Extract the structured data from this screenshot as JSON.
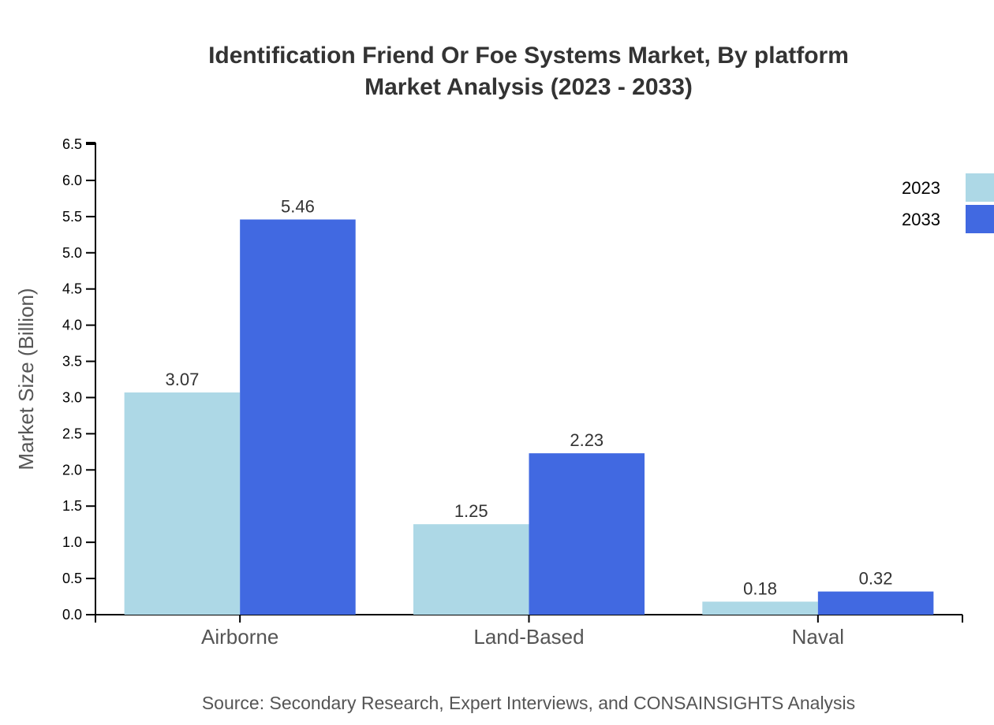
{
  "chart_data": {
    "type": "bar",
    "title": "Identification Friend Or Foe Systems Market, By platform",
    "subtitle": "Market Analysis (2023 - 2033)",
    "xlabel": "",
    "ylabel": "Market Size (Billion)",
    "ylim": [
      0,
      6.5
    ],
    "yticks": [
      "0.0",
      "0.5",
      "1.0",
      "1.5",
      "2.0",
      "2.5",
      "3.0",
      "3.5",
      "4.0",
      "4.5",
      "5.0",
      "5.5",
      "6.0",
      "6.5"
    ],
    "categories": [
      "Airborne",
      "Land-Based",
      "Naval"
    ],
    "series": [
      {
        "name": "2023",
        "values": [
          3.07,
          1.25,
          0.18
        ],
        "labels": [
          "3.07",
          "1.25",
          "0.18"
        ],
        "color": "#add8e6"
      },
      {
        "name": "2033",
        "values": [
          5.46,
          2.23,
          0.32
        ],
        "labels": [
          "5.46",
          "2.23",
          "0.32"
        ],
        "color": "#4169e1"
      }
    ],
    "grid": false,
    "legend": "top-right",
    "source": "Source: Secondary Research, Expert Interviews, and CONSAINSIGHTS Analysis"
  }
}
